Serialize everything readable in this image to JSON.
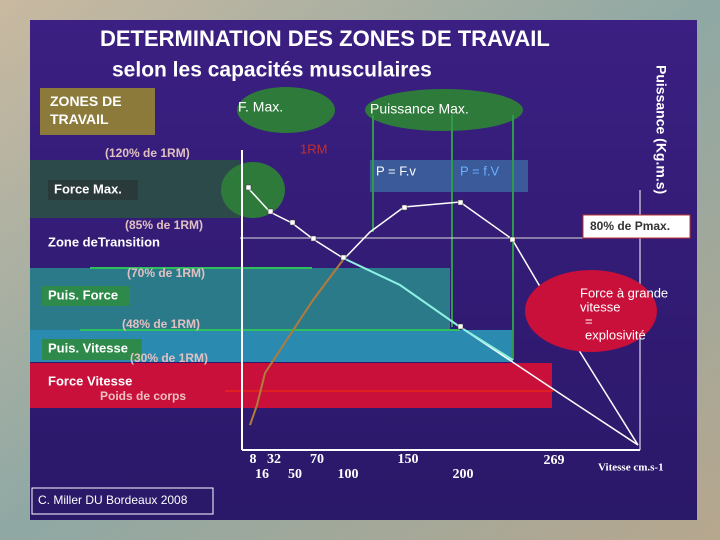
{
  "header": {
    "title": "DETERMINATION DES ZONES DE TRAVAIL",
    "subtitle": "selon les capacités musculaires"
  },
  "zones_box": "ZONES DE TRAVAIL",
  "bubbles": {
    "fmax": "F. Max.",
    "pmax": "Puissance Max.",
    "rm": "1RM"
  },
  "y_axis_label": "Puissance (Kg.m.s)",
  "zones": [
    {
      "percent": "(120%  de 1RM)",
      "label": "Force Max."
    },
    {
      "percent": "(85% de 1RM)",
      "label": "Zone deTransition"
    },
    {
      "percent": "(70%  de 1RM)",
      "label": "Puis. Force"
    },
    {
      "percent": "(48% de 1RM)",
      "label": "Puis. Vitesse"
    },
    {
      "percent": "(30% de 1RM)",
      "label": "Force Vitesse",
      "note": "Poids de corps"
    }
  ],
  "formulas": [
    "P = F.v",
    "P = f.V"
  ],
  "pmax_label": "80%  de Pmax.",
  "explosive": [
    "Force à grande",
    "vitesse",
    "=",
    "explosivité"
  ],
  "x_labels_top": [
    "8",
    "32",
    "70",
    "150",
    "269"
  ],
  "x_labels_bottom": [
    "16",
    "50",
    "100",
    "200"
  ],
  "x_axis_label": "Vitesse cm.s-1",
  "credit": "C. Miller DU Bordeaux 2008"
}
